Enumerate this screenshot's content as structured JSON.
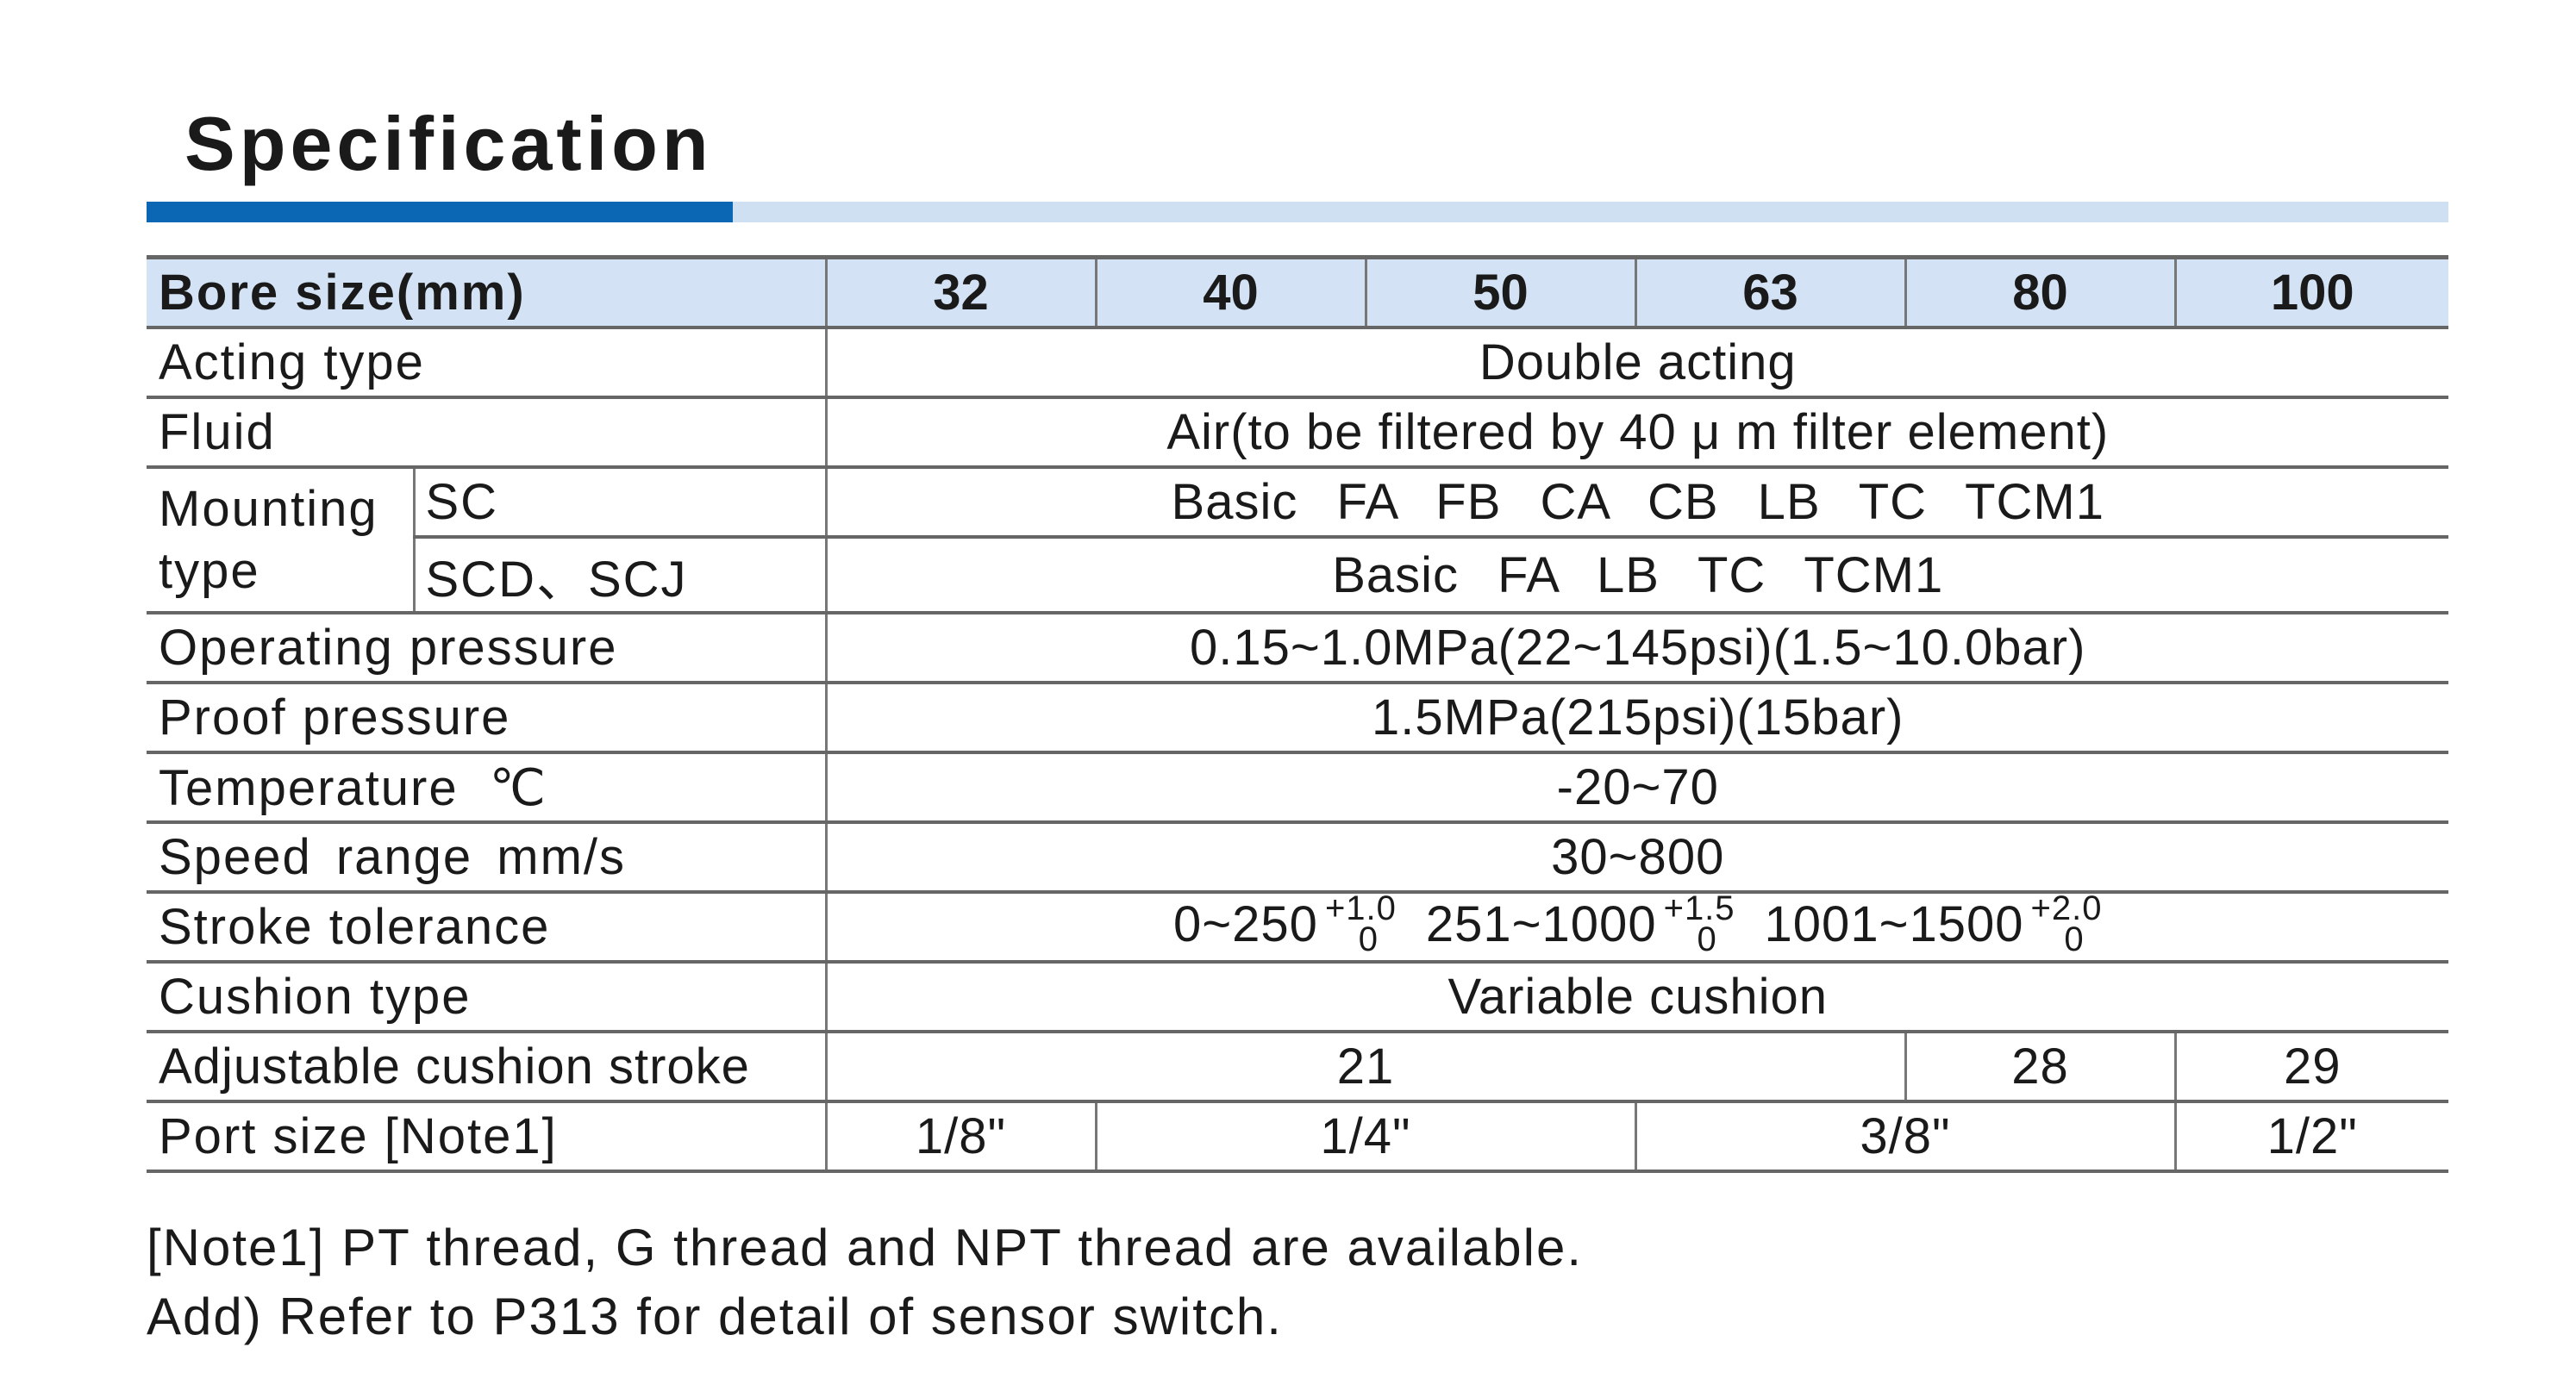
{
  "title": "Specification",
  "table": {
    "header_label": "Bore size(mm)",
    "bore_sizes": [
      "32",
      "40",
      "50",
      "63",
      "80",
      "100"
    ],
    "acting_type": {
      "label": "Acting type",
      "value": "Double acting"
    },
    "fluid": {
      "label": "Fluid",
      "value": "Air(to be filtered by 40 μ m filter element)"
    },
    "mounting": {
      "label_line1": "Mounting",
      "label_line2": "type",
      "sc_label": "SC",
      "sc_value": "Basic FA FB CA CB LB TC TCM1",
      "scd_label": "SCD、SCJ",
      "scd_value": "Basic FA LB TC TCM1"
    },
    "operating_pressure": {
      "label": "Operating pressure",
      "value": "0.15~1.0MPa(22~145psi)(1.5~10.0bar)"
    },
    "proof_pressure": {
      "label": "Proof pressure",
      "value": "1.5MPa(215psi)(15bar)"
    },
    "temperature": {
      "label": "Temperature ℃",
      "value": "-20~70"
    },
    "speed_range": {
      "label": "Speed range mm/s",
      "value": "30~800"
    },
    "stroke_tolerance": {
      "label": "Stroke tolerance",
      "ranges": [
        {
          "range": "0~250",
          "upper": "+1.0",
          "lower": "0"
        },
        {
          "range": "251~1000",
          "upper": "+1.5",
          "lower": "0"
        },
        {
          "range": "1001~1500",
          "upper": "+2.0",
          "lower": "0"
        }
      ]
    },
    "cushion_type": {
      "label": "Cushion type",
      "value": "Variable cushion"
    },
    "adjustable_cushion_stroke": {
      "label": "Adjustable cushion stroke",
      "values": [
        "21",
        "28",
        "29"
      ]
    },
    "port_size": {
      "label": "Port size [Note1]",
      "values": [
        "1/8\"",
        "1/4\"",
        "3/8\"",
        "1/2\""
      ]
    }
  },
  "notes": [
    "[Note1] PT thread, G thread and NPT thread are available.",
    "Add) Refer to P313 for detail of sensor switch."
  ]
}
